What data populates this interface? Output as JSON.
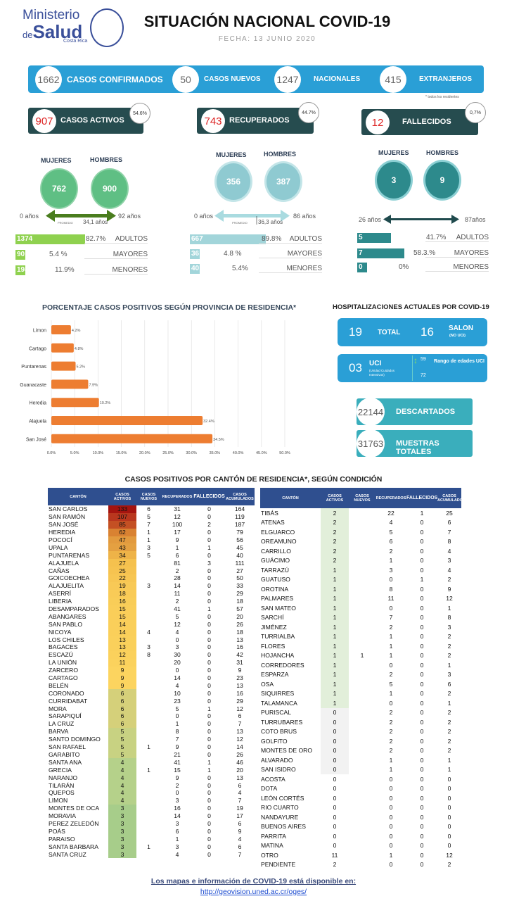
{
  "header": {
    "logo_line1": "Ministerio",
    "logo_de": "de",
    "logo_line2": "Salud",
    "logo_country": "Costa Rica",
    "title": "SITUACIÓN NACIONAL COVID-19",
    "date": "FECHA: 13 JUNIO 2020"
  },
  "summary": {
    "confirmados": "1662",
    "confirmados_label": "CASOS CONFIRMADOS",
    "nuevos": "50",
    "nuevos_label": "CASOS NUEVOS",
    "nacionales": "1247",
    "nacionales_label": "NACIONALES",
    "extranjeros": "415",
    "extranjeros_label": "EXTRANJEROS",
    "note": "* todos los residentes"
  },
  "status": [
    {
      "value": "907",
      "label": "CASOS ACTIVOS",
      "pct": "54.6%",
      "mujeres_label": "MUJERES",
      "hombres_label": "HOMBRES",
      "mujeres": "762",
      "hombres": "900",
      "age_min": "0 años",
      "age_max": "92 años",
      "avg_label": "PROMEDIO",
      "avg": "34,1 años",
      "groups": [
        {
          "n": "1374",
          "pct": "82.7%",
          "label": "ADULTOS",
          "share": 82.7
        },
        {
          "n": "90",
          "pct": "5.4 %",
          "label": "MAYORES",
          "share": 5.4
        },
        {
          "n": "198",
          "pct": "11.9%",
          "label": "MENORES",
          "share": 11.9
        }
      ]
    },
    {
      "value": "743",
      "label": "RECUPERADOS",
      "pct": "44.7%",
      "mujeres_label": "MUJERES",
      "hombres_label": "HOMBRES",
      "mujeres": "356",
      "hombres": "387",
      "age_min": "0 años",
      "age_max": "86 años",
      "avg_label": "PROMEDIO",
      "avg": "36,3 años",
      "groups": [
        {
          "n": "667",
          "pct": "89.8%",
          "label": "ADULTOS",
          "share": 89.8
        },
        {
          "n": "36",
          "pct": "4.8 %",
          "label": "MAYORES",
          "share": 4.8
        },
        {
          "n": "40",
          "pct": "5.4%",
          "label": "MENORES",
          "share": 5.4
        }
      ]
    },
    {
      "value": "12",
      "label": "FALLECIDOS",
      "pct": "0,7%",
      "mujeres_label": "MUJERES",
      "hombres_label": "HOMBRES",
      "mujeres": "3",
      "hombres": "9",
      "age_min": "26 años",
      "age_max": "87años",
      "groups": [
        {
          "n": "5",
          "pct": "41.7%",
          "label": "ADULTOS",
          "share": 41.7
        },
        {
          "n": "7",
          "pct": "58.3.%",
          "label": "MAYORES",
          "share": 58.3
        },
        {
          "n": "0",
          "pct": "0%",
          "label": "MENORES",
          "share": 0
        }
      ]
    }
  ],
  "colors": {
    "blue": "#2a9fd6",
    "dark_teal": "#264c4f",
    "orange": "#ed7d31",
    "green_circle": "#5fbf84",
    "light_teal": "#8fcad1",
    "teal": "#2d8a8c",
    "header_blue": "#2f4f8f"
  },
  "chart_data": {
    "type": "bar",
    "orientation": "horizontal",
    "title": "PORCENTAJE CASOS POSITIVOS SEGÚN PROVINCIA DE RESIDENCIA*",
    "categories": [
      "Limon",
      "Cartago",
      "Puntarenas",
      "Guanacaste",
      "Heredia",
      "Alajuela",
      "San José"
    ],
    "values": [
      4.2,
      4.8,
      5.2,
      7.9,
      10.2,
      32.4,
      34.5
    ],
    "data_labels": [
      "4.2%",
      "4.8%",
      "5.2%",
      "7.9%",
      "10.2%",
      "32.4%",
      "34.5%"
    ],
    "xlim": [
      0,
      50
    ],
    "xticks": [
      "0.0%",
      "5.0%",
      "10.0%",
      "15.0%",
      "20.0%",
      "25.0%",
      "30.0%",
      "35.0%",
      "40.0%",
      "45.0%",
      "50.0%"
    ],
    "grid": true,
    "color": "#ed7d31"
  },
  "hospital": {
    "title": "HOSPITALIZACIONES ACTUALES POR COVID-19",
    "total": "19",
    "total_label": "TOTAL",
    "salon": "16",
    "salon_label": "SALON",
    "salon_sub": "(NO UCI)",
    "uci": "03",
    "uci_label": "UCI",
    "uci_sub": "(Unidad Cuidados Intensivos)",
    "uci_min": "59",
    "uci_max": "72",
    "uci_range_label": "Rango de edades UCI"
  },
  "tests": {
    "descartados": "22144",
    "descartados_label": "DESCARTADOS",
    "muestras": "31763",
    "muestras_label": "MUESTRAS TOTALES"
  },
  "table": {
    "title": "CASOS POSITIVOS POR CANTÓN DE RESIDENCIA*, SEGÚN CONDICIÓN",
    "headers": [
      "CANTÓN",
      "CASOS ACTIVOS",
      "CASOS NUEVOS",
      "RECUPERADOS",
      "FALLECIDOS",
      "CASOS ACUMULADOS"
    ],
    "left": [
      [
        "SAN CARLOS",
        133,
        6,
        31,
        0,
        164
      ],
      [
        "SAN RAMÓN",
        107,
        5,
        12,
        0,
        119
      ],
      [
        "SAN JOSÉ",
        85,
        7,
        100,
        2,
        187
      ],
      [
        "HEREDIA",
        62,
        1,
        17,
        0,
        79
      ],
      [
        "POCOCÍ",
        47,
        1,
        9,
        0,
        56
      ],
      [
        "UPALA",
        43,
        3,
        1,
        1,
        45
      ],
      [
        "PUNTARENAS",
        34,
        5,
        6,
        0,
        40
      ],
      [
        "ALAJUELA",
        27,
        "",
        81,
        3,
        111
      ],
      [
        "CAÑAS",
        25,
        "",
        2,
        0,
        27
      ],
      [
        "GOICOECHEA",
        22,
        "",
        28,
        0,
        50
      ],
      [
        "ALAJUELITA",
        19,
        3,
        14,
        0,
        33
      ],
      [
        "ASERRÍ",
        18,
        "",
        11,
        0,
        29
      ],
      [
        "LIBERIA",
        16,
        "",
        2,
        0,
        18
      ],
      [
        "DESAMPARADOS",
        15,
        "",
        41,
        1,
        57
      ],
      [
        "ABANGARES",
        15,
        "",
        5,
        0,
        20
      ],
      [
        "SAN PABLO",
        14,
        "",
        12,
        0,
        26
      ],
      [
        "NICOYA",
        14,
        4,
        4,
        0,
        18
      ],
      [
        "LOS CHILES",
        13,
        "",
        0,
        0,
        13
      ],
      [
        "BAGACES",
        13,
        3,
        3,
        0,
        16
      ],
      [
        "ESCAZÚ",
        12,
        8,
        30,
        0,
        42
      ],
      [
        "LA UNIÓN",
        11,
        "",
        20,
        0,
        31
      ],
      [
        "ZARCERO",
        9,
        "",
        0,
        0,
        9
      ],
      [
        "CARTAGO",
        9,
        "",
        14,
        0,
        23
      ],
      [
        "BELÉN",
        9,
        "",
        4,
        0,
        13
      ],
      [
        "CORONADO",
        6,
        "",
        10,
        0,
        16
      ],
      [
        "CURRIDABAT",
        6,
        "",
        23,
        0,
        29
      ],
      [
        "MORA",
        6,
        "",
        5,
        1,
        12
      ],
      [
        "SARAPIQUÍ",
        6,
        "",
        0,
        0,
        6
      ],
      [
        "LA CRUZ",
        6,
        "",
        1,
        0,
        7
      ],
      [
        "BARVA",
        5,
        "",
        8,
        0,
        13
      ],
      [
        "SANTO DOMINGO",
        5,
        "",
        7,
        0,
        12
      ],
      [
        "SAN RAFAEL",
        5,
        1,
        9,
        0,
        14
      ],
      [
        "GARABITO",
        5,
        "",
        21,
        0,
        26
      ],
      [
        "SANTA ANA",
        4,
        "",
        41,
        1,
        46
      ],
      [
        "GRECIA",
        4,
        1,
        15,
        1,
        20
      ],
      [
        "NARANJO",
        4,
        "",
        9,
        0,
        13
      ],
      [
        "TILARÁN",
        4,
        "",
        2,
        0,
        6
      ],
      [
        "QUEPOS",
        4,
        "",
        0,
        0,
        4
      ],
      [
        "LIMON",
        4,
        "",
        3,
        0,
        7
      ],
      [
        "MONTES DE OCA",
        3,
        "",
        16,
        0,
        19
      ],
      [
        "MORAVIA",
        3,
        "",
        14,
        0,
        17
      ],
      [
        "PEREZ ZELEDÓN",
        3,
        "",
        3,
        0,
        6
      ],
      [
        "POÁS",
        3,
        "",
        6,
        0,
        9
      ],
      [
        "PARAISO",
        3,
        "",
        1,
        0,
        4
      ],
      [
        "SANTA BARBARA",
        3,
        1,
        3,
        0,
        6
      ],
      [
        "SANTA CRUZ",
        3,
        "",
        4,
        0,
        7
      ]
    ],
    "right": [
      [
        "TIBÁS",
        2,
        "",
        22,
        1,
        25
      ],
      [
        "ATENAS",
        2,
        "",
        4,
        0,
        6
      ],
      [
        "ELGUARCO",
        2,
        "",
        5,
        0,
        7
      ],
      [
        "OREAMUNO",
        2,
        "",
        6,
        0,
        8
      ],
      [
        "CARRILLO",
        2,
        "",
        2,
        0,
        4
      ],
      [
        "GUÁCIMO",
        2,
        "",
        1,
        0,
        3
      ],
      [
        "TARRAZÚ",
        1,
        "",
        3,
        0,
        4
      ],
      [
        "GUATUSO",
        1,
        "",
        0,
        1,
        2
      ],
      [
        "OROTINA",
        1,
        "",
        8,
        0,
        9
      ],
      [
        "PALMARES",
        1,
        "",
        11,
        0,
        12
      ],
      [
        "SAN MATEO",
        1,
        "",
        0,
        0,
        1
      ],
      [
        "SARCHÍ",
        1,
        "",
        7,
        0,
        8
      ],
      [
        "JIMÉNEZ",
        1,
        "",
        2,
        0,
        3
      ],
      [
        "TURRIALBA",
        1,
        "",
        1,
        0,
        2
      ],
      [
        "FLORES",
        1,
        "",
        1,
        0,
        2
      ],
      [
        "HOJANCHA",
        1,
        1,
        1,
        0,
        2
      ],
      [
        "CORREDORES",
        1,
        "",
        0,
        0,
        1
      ],
      [
        "ESPARZA",
        1,
        "",
        2,
        0,
        3
      ],
      [
        "OSA",
        1,
        "",
        5,
        0,
        6
      ],
      [
        "SIQUIRRES",
        1,
        "",
        1,
        0,
        2
      ],
      [
        "TALAMANCA",
        1,
        "",
        0,
        0,
        1
      ],
      [
        "PURISCAL",
        0,
        "",
        2,
        0,
        2
      ],
      [
        "TURRUBARES",
        0,
        "",
        2,
        0,
        2
      ],
      [
        "COTO BRUS",
        0,
        "",
        2,
        0,
        2
      ],
      [
        "GOLFITO",
        0,
        "",
        2,
        0,
        2
      ],
      [
        "MONTES DE ORO",
        0,
        "",
        2,
        0,
        2
      ],
      [
        "ALVARADO",
        0,
        "",
        1,
        0,
        1
      ],
      [
        "SAN ISIDRO",
        0,
        "",
        1,
        0,
        1
      ],
      [
        "ACOSTA",
        0,
        "",
        0,
        0,
        0
      ],
      [
        "DOTA",
        0,
        "",
        0,
        0,
        0
      ],
      [
        "LEÓN CORTÉS",
        0,
        "",
        0,
        0,
        0
      ],
      [
        "RIO CUARTO",
        0,
        "",
        0,
        0,
        0
      ],
      [
        "NANDAYURE",
        0,
        "",
        0,
        0,
        0
      ],
      [
        "BUENOS AIRES",
        0,
        "",
        0,
        0,
        0
      ],
      [
        "PARRITA",
        0,
        "",
        0,
        0,
        0
      ],
      [
        "MATINA",
        0,
        "",
        0,
        0,
        0
      ],
      [
        "OTRO",
        11,
        "",
        1,
        0,
        12
      ],
      [
        "PENDIENTE",
        2,
        "",
        0,
        0,
        2
      ]
    ]
  },
  "footer": {
    "text": "Los mapas e información de COVID-19 está disponible en:",
    "url": "http://geovision.uned.ac.cr/oges/"
  }
}
